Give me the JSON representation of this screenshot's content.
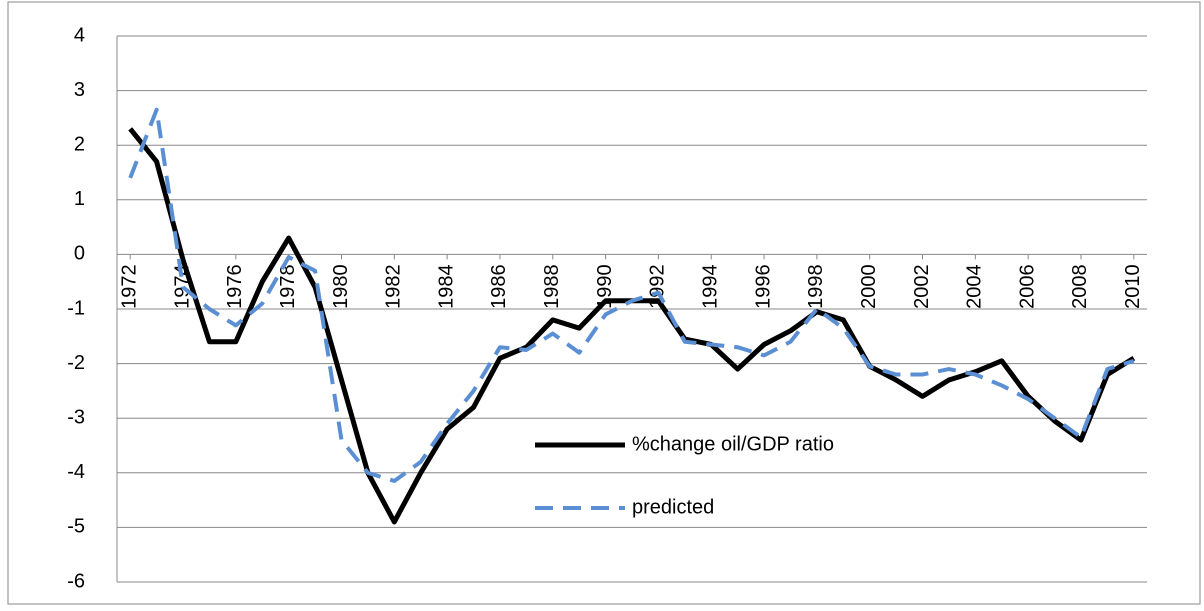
{
  "chart_data": {
    "type": "line",
    "x": [
      1972,
      1973,
      1974,
      1975,
      1976,
      1977,
      1978,
      1979,
      1980,
      1981,
      1982,
      1983,
      1984,
      1985,
      1986,
      1987,
      1988,
      1989,
      1990,
      1991,
      1992,
      1993,
      1994,
      1995,
      1996,
      1997,
      1998,
      1999,
      2000,
      2001,
      2002,
      2003,
      2004,
      2005,
      2006,
      2007,
      2008,
      2009,
      2010
    ],
    "series": [
      {
        "name": "%change oil/GDP ratio",
        "color": "#000000",
        "dash": false,
        "values": [
          2.3,
          1.7,
          -0.1,
          -1.6,
          -1.6,
          -0.5,
          0.3,
          -0.6,
          -2.3,
          -4.0,
          -4.9,
          -4.0,
          -3.2,
          -2.8,
          -1.9,
          -1.7,
          -1.2,
          -1.35,
          -0.85,
          -0.85,
          -0.85,
          -1.55,
          -1.65,
          -2.1,
          -1.65,
          -1.4,
          -1.05,
          -1.2,
          -2.05,
          -2.3,
          -2.6,
          -2.3,
          -2.15,
          -1.95,
          -2.6,
          -3.05,
          -3.4,
          -2.2,
          -1.9
        ]
      },
      {
        "name": "predicted",
        "color": "#5b8fd4",
        "dash": true,
        "values": [
          1.4,
          2.65,
          -0.6,
          -1.0,
          -1.3,
          -0.9,
          -0.05,
          -0.3,
          -3.4,
          -4.0,
          -4.15,
          -3.8,
          -3.1,
          -2.5,
          -1.7,
          -1.75,
          -1.45,
          -1.8,
          -1.1,
          -0.85,
          -0.7,
          -1.6,
          -1.65,
          -1.7,
          -1.85,
          -1.6,
          -1.0,
          -1.35,
          -2.05,
          -2.2,
          -2.2,
          -2.1,
          -2.2,
          -2.4,
          -2.65,
          -3.0,
          -3.35,
          -2.1,
          -1.95
        ]
      }
    ],
    "xlim": [
      1971.5,
      2010.5
    ],
    "xticks": [
      1972,
      1974,
      1976,
      1978,
      1980,
      1982,
      1984,
      1986,
      1988,
      1990,
      1992,
      1994,
      1996,
      1998,
      2000,
      2002,
      2004,
      2006,
      2008,
      2010
    ],
    "ylim": [
      -6,
      4
    ],
    "yticks": [
      -6,
      -5,
      -4,
      -3,
      -2,
      -1,
      0,
      1,
      2,
      3,
      4
    ],
    "grid": true,
    "legend": "lower center"
  }
}
